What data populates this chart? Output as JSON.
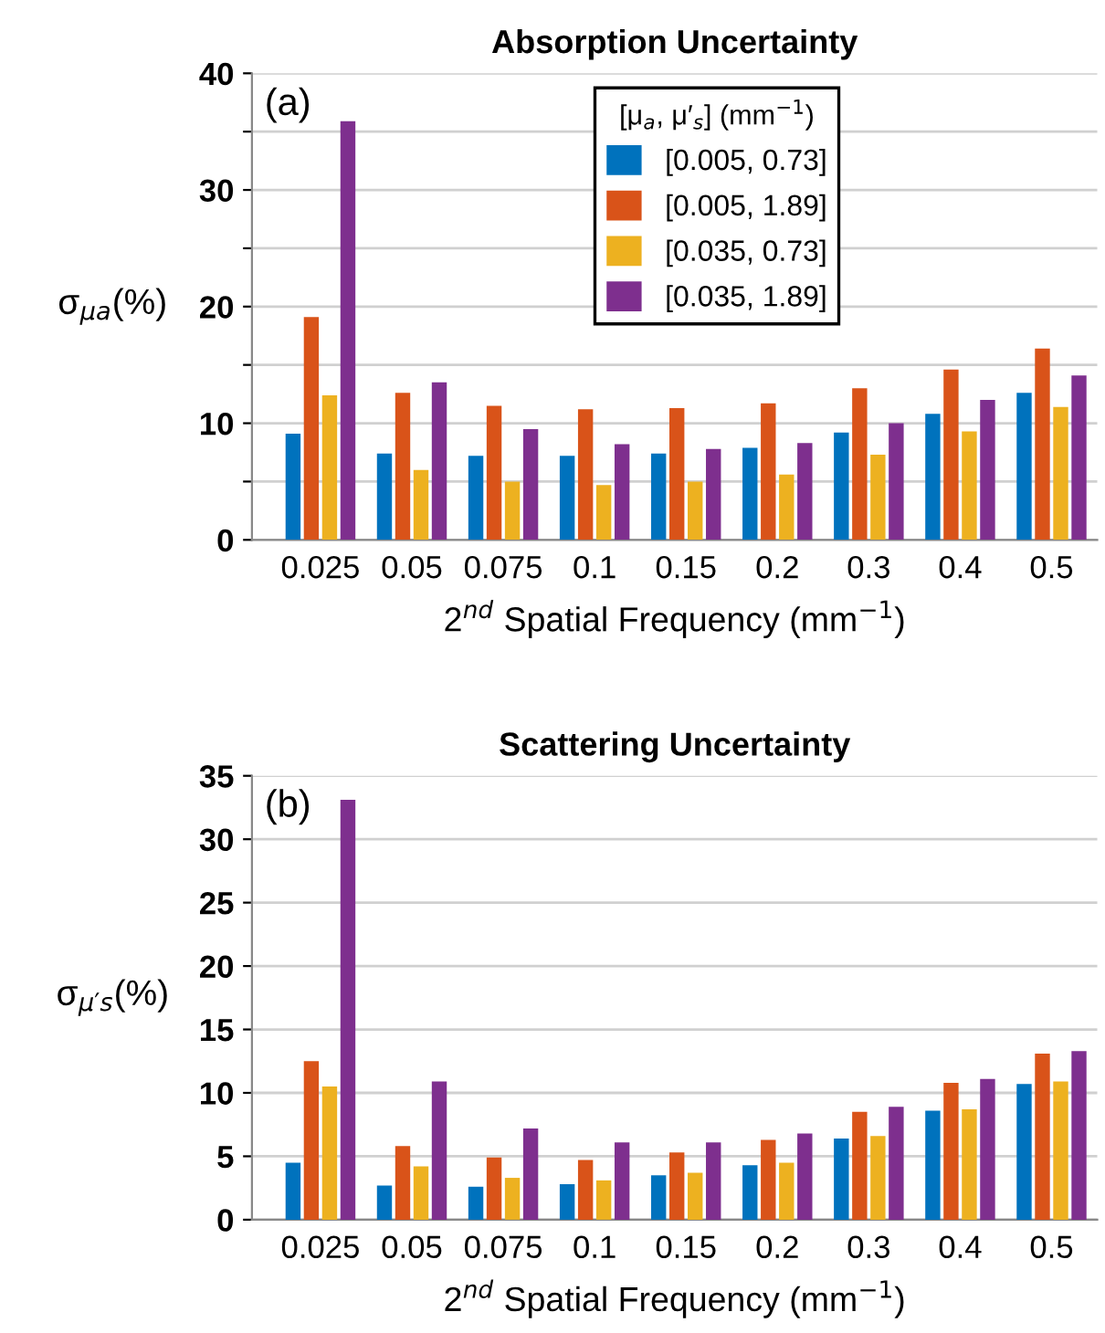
{
  "chart_data": [
    {
      "type": "bar",
      "title": "Absorption Uncertainty",
      "xlabel": "2$^{nd}$ Spatial Frequency (mm$^{−1}$)",
      "ylabel": "σ$_{μa}$(%)",
      "legend_title": "[μ$_{a}$, μ′$_{s}$] (mm$^{−1}$)",
      "annotations": [
        "(a)"
      ],
      "categories": [
        "0.025",
        "0.05",
        "0.075",
        "0.1",
        "0.15",
        "0.2",
        "0.3",
        "0.4",
        "0.5"
      ],
      "series": [
        {
          "name": "[0.005, 0.73]",
          "color": "#0072bd",
          "values": [
            9.1,
            7.4,
            7.2,
            7.2,
            7.4,
            7.9,
            9.2,
            10.8,
            12.6
          ]
        },
        {
          "name": "[0.005, 1.89]",
          "color": "#d95319",
          "values": [
            19.1,
            12.6,
            11.5,
            11.2,
            11.3,
            11.7,
            13.0,
            14.6,
            16.4
          ]
        },
        {
          "name": "[0.035, 0.73]",
          "color": "#edb120",
          "values": [
            12.4,
            6.0,
            5.0,
            4.7,
            5.0,
            5.6,
            7.3,
            9.3,
            11.4
          ]
        },
        {
          "name": "[0.035, 1.89]",
          "color": "#7e2f8e",
          "values": [
            35.9,
            13.5,
            9.5,
            8.2,
            7.8,
            8.3,
            10.0,
            12.0,
            14.1
          ]
        }
      ],
      "ylim": [
        0,
        40
      ],
      "yticks": [
        0,
        {
          "value": 5,
          "label": null
        },
        10,
        {
          "value": 15,
          "label": null
        },
        20,
        {
          "value": 25,
          "label": null
        },
        30,
        {
          "value": 35,
          "label": null
        },
        40
      ],
      "grid": "y",
      "legend": "top"
    },
    {
      "type": "bar",
      "title": "Scattering Uncertainty",
      "xlabel": "2$^{nd}$ Spatial Frequency (mm$^{−1}$)",
      "ylabel": "σ$_{μ′s}$(%)",
      "annotations": [
        "(b)"
      ],
      "categories": [
        "0.025",
        "0.05",
        "0.075",
        "0.1",
        "0.15",
        "0.2",
        "0.3",
        "0.4",
        "0.5"
      ],
      "series": [
        {
          "color": "#0072bd",
          "values": [
            4.5,
            2.7,
            2.6,
            2.8,
            3.5,
            4.3,
            6.4,
            8.6,
            10.7
          ]
        },
        {
          "color": "#d95319",
          "values": [
            12.5,
            5.8,
            4.9,
            4.7,
            5.3,
            6.3,
            8.5,
            10.8,
            13.1
          ]
        },
        {
          "color": "#edb120",
          "values": [
            10.5,
            4.2,
            3.3,
            3.1,
            3.7,
            4.5,
            6.6,
            8.7,
            10.9
          ]
        },
        {
          "color": "#7e2f8e",
          "values": [
            33.1,
            10.9,
            7.2,
            6.1,
            6.1,
            6.8,
            8.9,
            11.1,
            13.3
          ]
        }
      ],
      "ylim": [
        0,
        35
      ],
      "yticks": [
        0,
        5,
        10,
        15,
        20,
        25,
        30,
        35
      ],
      "grid": "y",
      "legend": false
    }
  ]
}
